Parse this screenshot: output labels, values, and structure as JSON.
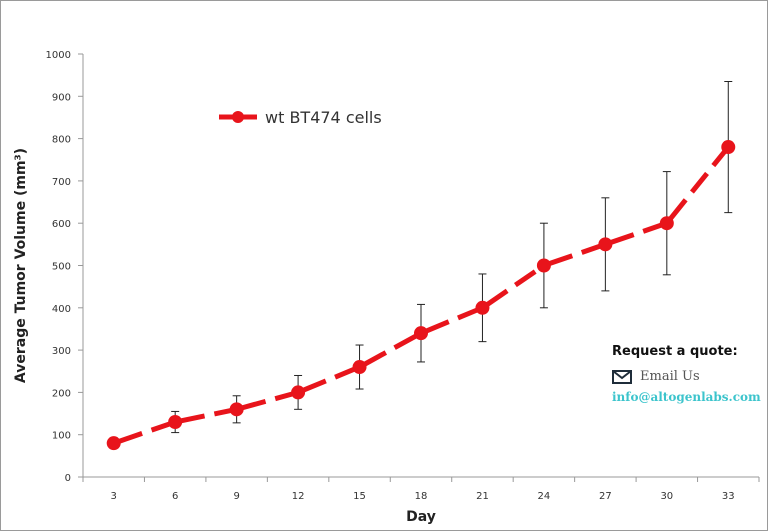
{
  "chart_data": {
    "type": "line",
    "title": "",
    "xlabel": "Day",
    "ylabel": "Average Tumor Volume (mm³)",
    "x": [
      3,
      6,
      9,
      12,
      15,
      18,
      21,
      24,
      27,
      30,
      33
    ],
    "ylim": [
      0,
      1000
    ],
    "yticks": [
      0,
      100,
      200,
      300,
      400,
      500,
      600,
      700,
      800,
      900,
      1000
    ],
    "grid": false,
    "legend_position": "top-left",
    "series": [
      {
        "name": "wt BT474 cells",
        "color": "#e8141b",
        "values": [
          80,
          130,
          160,
          200,
          260,
          340,
          400,
          500,
          550,
          600,
          780
        ],
        "error": [
          10,
          25,
          32,
          40,
          52,
          68,
          80,
          100,
          110,
          122,
          155
        ]
      }
    ]
  },
  "quote": {
    "heading": "Request a quote:",
    "email_label": "Email Us",
    "email": "info@altogenlabs.com"
  }
}
